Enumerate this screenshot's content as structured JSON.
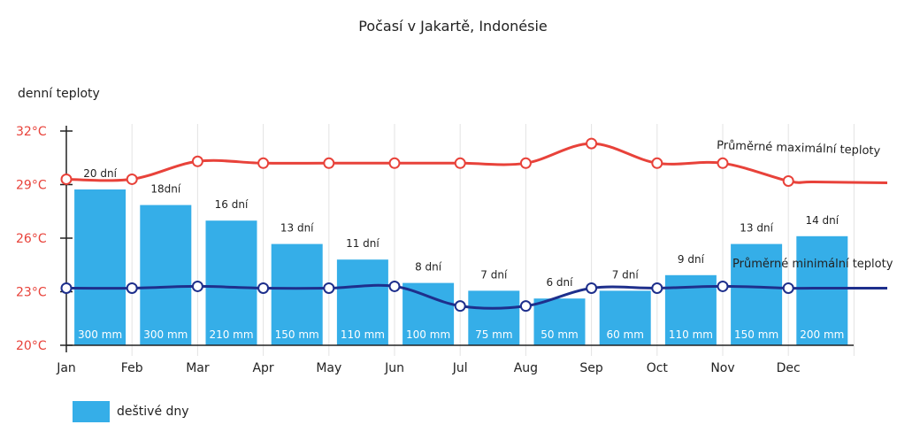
{
  "chart_data": {
    "type": "bar",
    "title": "Počasí v Jakartě, Indonésie",
    "ylabel": "denní teploty",
    "ylim": [
      20,
      32
    ],
    "yticks": [
      "32°C",
      "29°C",
      "26°C",
      "23°C",
      "20°C"
    ],
    "ytick_values": [
      32,
      29,
      26,
      23,
      20
    ],
    "categories": [
      "Jan",
      "Feb",
      "Mar",
      "Apr",
      "May",
      "Jun",
      "Jul",
      "Aug",
      "Sep",
      "Oct",
      "Nov",
      "Dec"
    ],
    "grid": "vertical",
    "legend_position": "bottom-left",
    "series": [
      {
        "name": "deštivé dny",
        "kind": "bar",
        "color": "#35aee8",
        "values": [
          20,
          18,
          16,
          13,
          11,
          8,
          7,
          6,
          7,
          9,
          13,
          14
        ],
        "labels": [
          "20 dní",
          "18dní",
          "16 dní",
          "13 dní",
          "11 dní",
          "8 dní",
          "7 dní",
          "6 dní",
          "7 dní",
          "9 dní",
          "13 dní",
          "14 dní"
        ],
        "precip_labels": [
          "300 mm",
          "300 mm",
          "210 mm",
          "150 mm",
          "110 mm",
          "100 mm",
          "75 mm",
          "50 mm",
          "60 mm",
          "110 mm",
          "150 mm",
          "200 mm"
        ],
        "precip_mm": [
          300,
          300,
          210,
          150,
          110,
          100,
          75,
          50,
          60,
          110,
          150,
          200
        ]
      },
      {
        "name": "Průměrné maximální teploty",
        "kind": "line",
        "color": "#e8423a",
        "values": [
          29.3,
          29.3,
          30.3,
          30.2,
          30.2,
          30.2,
          30.2,
          30.2,
          31.3,
          30.2,
          30.2,
          29.2
        ]
      },
      {
        "name": "Průměrné minimální teploty",
        "kind": "line",
        "color": "#1e2f8c",
        "values": [
          23.2,
          23.2,
          23.3,
          23.2,
          23.2,
          23.3,
          22.2,
          22.2,
          23.2,
          23.2,
          23.3,
          23.2
        ]
      }
    ]
  }
}
